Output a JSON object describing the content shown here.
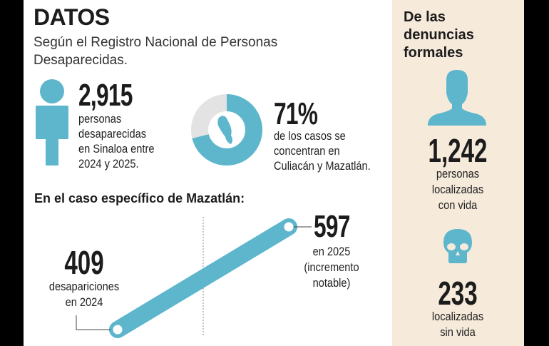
{
  "header": {
    "title": "DATOS",
    "subtitle_line1": "Según el Registro Nacional de Personas",
    "subtitle_line2": "Desaparecidas."
  },
  "stat_total": {
    "value": "2,915",
    "lines": [
      "personas",
      "desaparecidas",
      "en Sinaloa entre",
      "2024 y 2025."
    ],
    "icon": "person-icon"
  },
  "stat_share": {
    "value": "71%",
    "percent": 71,
    "lines": [
      "de los casos se",
      "concentran en",
      "Culiacán y Mazatlán."
    ],
    "icon": "sinaloa-map-icon"
  },
  "mazatlan": {
    "heading": "En el caso específico de Mazatlán:",
    "start": {
      "value": "409",
      "lines": [
        "desapariciones",
        "en 2024"
      ]
    },
    "end": {
      "value": "597",
      "lines": [
        "en 2025",
        "(incremento",
        "notable)"
      ]
    }
  },
  "sidebar": {
    "heading_lines": [
      "De las",
      "denuncias",
      "formales"
    ],
    "alive": {
      "value": "1,242",
      "lines": [
        "personas",
        "localizadas",
        "con vida"
      ],
      "icon": "person-bust-icon"
    },
    "dead": {
      "value": "233",
      "lines": [
        "localizadas",
        "sin vida"
      ],
      "icon": "skull-icon"
    }
  },
  "colors": {
    "accent": "#5db6cc",
    "donut_rest": "#e3e3e3",
    "sidebar_bg": "#f6eadb"
  }
}
